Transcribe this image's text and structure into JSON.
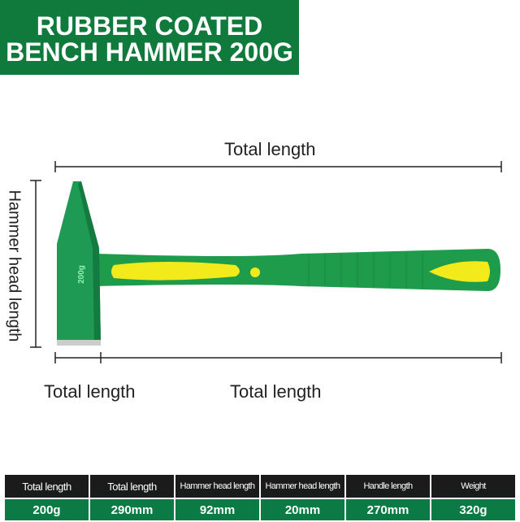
{
  "banner": {
    "line1": "RUBBER COATED",
    "line2": "BENCH HAMMER 200G"
  },
  "dimensions": {
    "top": "Total length",
    "left": "Hammer head length",
    "bottom_left": "Total length",
    "bottom_right": "Total length"
  },
  "hammer": {
    "head_marking": "200g",
    "head_color": "#1f9a55",
    "handle_color": "#1e9c4c",
    "grip_color": "#f2ea1a"
  },
  "spec_table": {
    "headers": [
      "Total length",
      "Total length",
      "Hammer head length",
      "Hammer head length",
      "Handle length",
      "Weight"
    ],
    "values": [
      "200g",
      "290mm",
      "92mm",
      "20mm",
      "270mm",
      "320g"
    ]
  }
}
